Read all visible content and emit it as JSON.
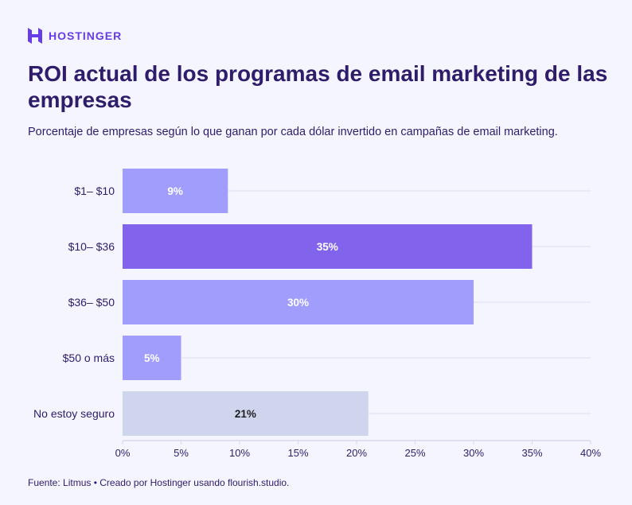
{
  "brand": "HOSTINGER",
  "title": "ROI actual de los programas de email marketing de las empresas",
  "subtitle": "Porcentaje de empresas según lo que ganan por cada dólar invertido en campañas de email marketing.",
  "footer": "Fuente: Litmus • Creado por Hostinger usando flourish.studio.",
  "chart_data": {
    "type": "bar",
    "orientation": "horizontal",
    "categories": [
      "$1– $10",
      "$10– $36",
      "$36– $50",
      "$50 o más",
      "No estoy seguro"
    ],
    "values": [
      9,
      35,
      30,
      5,
      21
    ],
    "labels": [
      "9%",
      "35%",
      "30%",
      "5%",
      "21%"
    ],
    "colors": [
      "#a09dfd",
      "#8263eb",
      "#a09dfd",
      "#a09dfd",
      "#d0d5ee"
    ],
    "label_colors": [
      "#ffffff",
      "#ffffff",
      "#ffffff",
      "#ffffff",
      "#1d1e20"
    ],
    "xlim": [
      0,
      40
    ],
    "xticks": [
      "0%",
      "5%",
      "10%",
      "15%",
      "20%",
      "25%",
      "30%",
      "35%",
      "40%"
    ],
    "grid": true
  }
}
